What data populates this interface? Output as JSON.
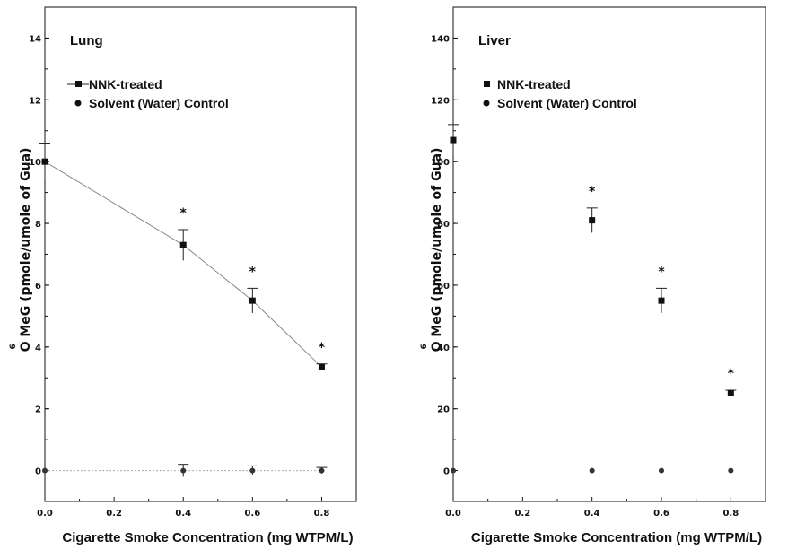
{
  "chart_data": [
    {
      "type": "line",
      "panel_label": "Lung",
      "xlabel": "Cigarette Smoke Concentration (mg WTPM/L)",
      "ylabel": "O⁶MeG (pmole/umole of Gua)",
      "ylabel_main": "O MeG (pmole/umole of Gua)",
      "ylabel_superscript": "6",
      "xlim": [
        0.0,
        0.9
      ],
      "ylim": [
        -1,
        15
      ],
      "x_ticks": [
        0.0,
        0.2,
        0.4,
        0.6,
        0.8
      ],
      "x_tick_labels": [
        "0.0",
        "0.2",
        "0.4",
        "0.6",
        "0.8"
      ],
      "y_ticks": [
        0,
        2,
        4,
        6,
        8,
        10,
        12,
        14
      ],
      "y_tick_labels": [
        "0",
        "2",
        "4",
        "6",
        "8",
        "10",
        "12",
        "14"
      ],
      "grid": false,
      "legend_position": "upper-left",
      "series": [
        {
          "name": "NNK-treated",
          "marker": "square",
          "x": [
            0.0,
            0.4,
            0.6,
            0.8
          ],
          "y": [
            10.0,
            7.3,
            5.5,
            3.35
          ],
          "err": [
            0.6,
            0.5,
            0.4,
            0.1
          ],
          "significant": [
            false,
            true,
            true,
            true
          ]
        },
        {
          "name": "Solvent (Water) Control",
          "marker": "circle",
          "x": [
            0.0,
            0.4,
            0.6,
            0.8
          ],
          "y": [
            0.0,
            0.0,
            0.0,
            0.0
          ],
          "err": [
            0.0,
            0.2,
            0.15,
            0.1
          ],
          "significant": [
            false,
            false,
            false,
            false
          ]
        }
      ],
      "significance_marker": "*"
    },
    {
      "type": "scatter",
      "panel_label": "Liver",
      "xlabel": "Cigarette Smoke Concentration (mg WTPM/L)",
      "ylabel": "O⁶MeG (pmole/umole of Gua)",
      "ylabel_main": "O MeG (pmole/umole of Gua)",
      "ylabel_superscript": "6",
      "xlim": [
        0.0,
        0.9
      ],
      "ylim": [
        -10,
        150
      ],
      "x_ticks": [
        0.0,
        0.2,
        0.4,
        0.6,
        0.8
      ],
      "x_tick_labels": [
        "0.0",
        "0.2",
        "0.4",
        "0.6",
        "0.8"
      ],
      "y_ticks": [
        0,
        20,
        40,
        60,
        80,
        100,
        120,
        140
      ],
      "y_tick_labels": [
        "0",
        "20",
        "40",
        "60",
        "80",
        "100",
        "120",
        "140"
      ],
      "grid": false,
      "legend_position": "upper-left",
      "series": [
        {
          "name": "NNK-treated",
          "marker": "square",
          "x": [
            0.0,
            0.4,
            0.6,
            0.8
          ],
          "y": [
            107,
            81,
            55,
            25
          ],
          "err": [
            5,
            4,
            4,
            1
          ],
          "significant": [
            false,
            true,
            true,
            true
          ]
        },
        {
          "name": "Solvent (Water) Control",
          "marker": "circle",
          "x": [
            0.0,
            0.4,
            0.6,
            0.8
          ],
          "y": [
            0,
            0,
            0,
            0
          ],
          "err": [
            0,
            0,
            0,
            0
          ],
          "significant": [
            false,
            false,
            false,
            false
          ]
        }
      ],
      "significance_marker": "*"
    }
  ]
}
